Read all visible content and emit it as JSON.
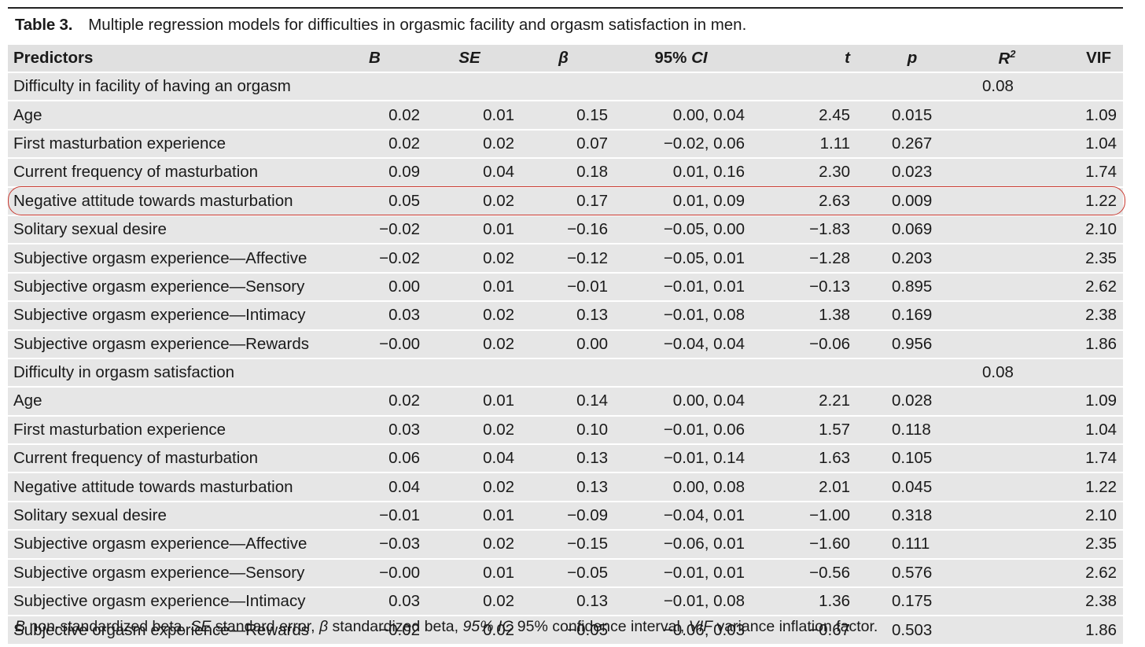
{
  "caption": {
    "label": "Table 3.",
    "text": "Multiple regression models for difficulties in orgasmic facility and orgasm satisfaction in men."
  },
  "columns": {
    "predictors": "Predictors",
    "b": "B",
    "se": "SE",
    "beta": "β",
    "ci": "95% CI",
    "t": "t",
    "p": "p",
    "r2_base": "R",
    "r2_sup": "2",
    "vif": "VIF"
  },
  "sections": [
    {
      "title": "Difficulty in facility of having an orgasm",
      "r2": "0.08",
      "rows": [
        {
          "predictor": "Age",
          "b": "0.02",
          "se": "0.01",
          "beta": "0.15",
          "ci": "0.00, 0.04",
          "t": "2.45",
          "p": "0.015",
          "vif": "1.09"
        },
        {
          "predictor": "First masturbation experience",
          "b": "0.02",
          "se": "0.02",
          "beta": "0.07",
          "ci": "−0.02, 0.06",
          "t": "1.11",
          "p": "0.267",
          "vif": "1.04"
        },
        {
          "predictor": "Current frequency of masturbation",
          "b": "0.09",
          "se": "0.04",
          "beta": "0.18",
          "ci": "0.01, 0.16",
          "t": "2.30",
          "p": "0.023",
          "vif": "1.74"
        },
        {
          "predictor": "Negative attitude towards masturbation",
          "b": "0.05",
          "se": "0.02",
          "beta": "0.17",
          "ci": "0.01, 0.09",
          "t": "2.63",
          "p": "0.009",
          "vif": "1.22"
        },
        {
          "predictor": "Solitary sexual desire",
          "b": "−0.02",
          "se": "0.01",
          "beta": "−0.16",
          "ci": "−0.05, 0.00",
          "t": "−1.83",
          "p": "0.069",
          "vif": "2.10"
        },
        {
          "predictor": "Subjective orgasm experience—Affective",
          "b": "−0.02",
          "se": "0.02",
          "beta": "−0.12",
          "ci": "−0.05, 0.01",
          "t": "−1.28",
          "p": "0.203",
          "vif": "2.35"
        },
        {
          "predictor": "Subjective orgasm experience—Sensory",
          "b": "0.00",
          "se": "0.01",
          "beta": "−0.01",
          "ci": "−0.01, 0.01",
          "t": "−0.13",
          "p": "0.895",
          "vif": "2.62"
        },
        {
          "predictor": "Subjective orgasm experience—Intimacy",
          "b": "0.03",
          "se": "0.02",
          "beta": "0.13",
          "ci": "−0.01, 0.08",
          "t": "1.38",
          "p": "0.169",
          "vif": "2.38"
        },
        {
          "predictor": "Subjective orgasm experience—Rewards",
          "b": "−0.00",
          "se": "0.02",
          "beta": "0.00",
          "ci": "−0.04, 0.04",
          "t": "−0.06",
          "p": "0.956",
          "vif": "1.86"
        }
      ]
    },
    {
      "title": "Difficulty in orgasm satisfaction",
      "r2": "0.08",
      "rows": [
        {
          "predictor": "Age",
          "b": "0.02",
          "se": "0.01",
          "beta": "0.14",
          "ci": "0.00, 0.04",
          "t": "2.21",
          "p": "0.028",
          "vif": "1.09"
        },
        {
          "predictor": "First masturbation experience",
          "b": "0.03",
          "se": "0.02",
          "beta": "0.10",
          "ci": "−0.01, 0.06",
          "t": "1.57",
          "p": "0.118",
          "vif": "1.04"
        },
        {
          "predictor": "Current frequency of masturbation",
          "b": "0.06",
          "se": "0.04",
          "beta": "0.13",
          "ci": "−0.01, 0.14",
          "t": "1.63",
          "p": "0.105",
          "vif": "1.74"
        },
        {
          "predictor": "Negative attitude towards masturbation",
          "b": "0.04",
          "se": "0.02",
          "beta": "0.13",
          "ci": "0.00, 0.08",
          "t": "2.01",
          "p": "0.045",
          "vif": "1.22"
        },
        {
          "predictor": "Solitary sexual desire",
          "b": "−0.01",
          "se": "0.01",
          "beta": "−0.09",
          "ci": "−0.04, 0.01",
          "t": "−1.00",
          "p": "0.318",
          "vif": "2.10"
        },
        {
          "predictor": "Subjective orgasm experience—Affective",
          "b": "−0.03",
          "se": "0.02",
          "beta": "−0.15",
          "ci": "−0.06, 0.01",
          "t": "−1.60",
          "p": "0.111",
          "vif": "2.35"
        },
        {
          "predictor": "Subjective orgasm experience—Sensory",
          "b": "−0.00",
          "se": "0.01",
          "beta": "−0.05",
          "ci": "−0.01, 0.01",
          "t": "−0.56",
          "p": "0.576",
          "vif": "2.62"
        },
        {
          "predictor": "Subjective orgasm experience—Intimacy",
          "b": "0.03",
          "se": "0.02",
          "beta": "0.13",
          "ci": "−0.01, 0.08",
          "t": "1.36",
          "p": "0.175",
          "vif": "2.38"
        },
        {
          "predictor": "Subjective orgasm experience—Rewards",
          "b": "−0.02",
          "se": "0.02",
          "beta": "−0.05",
          "ci": "−0.06, 0.03",
          "t": "−0.67",
          "p": "0.503",
          "vif": "1.86"
        }
      ]
    }
  ],
  "highlight": {
    "section": 0,
    "row": 3,
    "color": "#c8372e"
  },
  "footnote": [
    {
      "text": "B",
      "italic": true
    },
    {
      "text": " non-standardized beta, ",
      "italic": false
    },
    {
      "text": "SE",
      "italic": true
    },
    {
      "text": " standard error, ",
      "italic": false
    },
    {
      "text": "β",
      "italic": true
    },
    {
      "text": " standardized beta, ",
      "italic": false
    },
    {
      "text": "95% IC",
      "italic": true
    },
    {
      "text": " 95% confidence interval, ",
      "italic": false
    },
    {
      "text": "VIF",
      "italic": true
    },
    {
      "text": " variance inflation factor.",
      "italic": false
    }
  ]
}
